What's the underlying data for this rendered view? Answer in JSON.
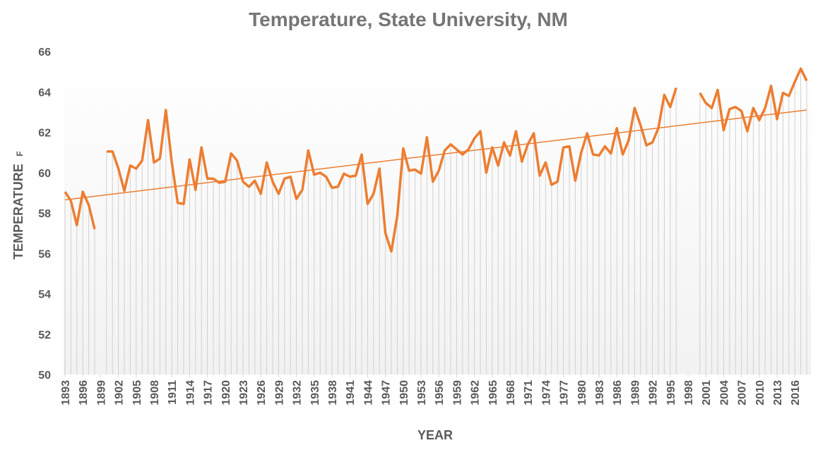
{
  "chart_data": {
    "type": "line",
    "title": "Temperature, State University, NM",
    "y_label": "TEMPERATURE",
    "y_unit": "F",
    "x_label": "YEAR",
    "x": [
      1893,
      1894,
      1895,
      1896,
      1897,
      1898,
      1899,
      1900,
      1901,
      1902,
      1903,
      1904,
      1905,
      1906,
      1907,
      1908,
      1909,
      1910,
      1911,
      1912,
      1913,
      1914,
      1915,
      1916,
      1917,
      1918,
      1919,
      1920,
      1921,
      1922,
      1923,
      1924,
      1925,
      1926,
      1927,
      1928,
      1929,
      1930,
      1931,
      1932,
      1933,
      1934,
      1935,
      1936,
      1937,
      1938,
      1939,
      1940,
      1941,
      1942,
      1943,
      1944,
      1945,
      1946,
      1947,
      1948,
      1949,
      1950,
      1951,
      1952,
      1953,
      1954,
      1955,
      1956,
      1957,
      1958,
      1959,
      1960,
      1961,
      1962,
      1963,
      1964,
      1965,
      1966,
      1967,
      1968,
      1969,
      1970,
      1971,
      1972,
      1973,
      1974,
      1975,
      1976,
      1977,
      1978,
      1979,
      1980,
      1981,
      1982,
      1983,
      1984,
      1985,
      1986,
      1987,
      1988,
      1989,
      1990,
      1991,
      1992,
      1993,
      1994,
      1995,
      1996,
      1997,
      1998,
      1999,
      2000,
      2001,
      2002,
      2003,
      2004,
      2005,
      2006,
      2007,
      2008,
      2009,
      2010,
      2011,
      2012,
      2013,
      2014,
      2015,
      2016,
      2017,
      2018
    ],
    "series": [
      {
        "color": "#ed7d31",
        "values": [
          59.05,
          58.6,
          57.4,
          59.05,
          58.4,
          57.2,
          null,
          61.05,
          61.05,
          60.2,
          59.1,
          60.35,
          60.2,
          60.6,
          62.6,
          60.5,
          60.7,
          63.1,
          60.5,
          58.5,
          58.45,
          60.65,
          59.15,
          61.25,
          59.7,
          59.7,
          59.5,
          59.55,
          60.95,
          60.6,
          59.55,
          59.3,
          59.6,
          58.95,
          60.5,
          59.55,
          58.95,
          59.7,
          59.8,
          58.7,
          59.15,
          61.1,
          59.9,
          60.0,
          59.8,
          59.25,
          59.3,
          59.95,
          59.8,
          59.85,
          60.9,
          58.45,
          58.95,
          60.2,
          57.0,
          56.1,
          57.85,
          61.2,
          60.1,
          60.15,
          59.95,
          61.75,
          59.55,
          60.1,
          61.1,
          61.4,
          61.15,
          60.9,
          61.15,
          61.7,
          62.05,
          60.0,
          61.25,
          60.35,
          61.5,
          60.85,
          62.05,
          60.55,
          61.4,
          61.95,
          59.85,
          60.5,
          59.4,
          59.55,
          61.25,
          61.3,
          59.6,
          61.0,
          61.95,
          60.9,
          60.85,
          61.3,
          60.95,
          62.2,
          60.9,
          61.6,
          63.2,
          62.35,
          61.35,
          61.5,
          62.2,
          63.85,
          63.25,
          64.2,
          null,
          null,
          null,
          63.95,
          63.45,
          63.2,
          64.1,
          62.1,
          63.15,
          63.25,
          63.05,
          62.05,
          63.2,
          62.6,
          63.2,
          64.3,
          62.65,
          63.95,
          63.8,
          64.5,
          65.15,
          64.55
        ]
      }
    ],
    "trendline": {
      "color": "#ed7d31",
      "x": [
        1893,
        2018
      ],
      "values": [
        58.65,
        63.1
      ]
    },
    "xlim": [
      1893,
      2018
    ],
    "xticks": [
      1893,
      1896,
      1899,
      1902,
      1905,
      1908,
      1911,
      1914,
      1917,
      1920,
      1923,
      1926,
      1929,
      1932,
      1935,
      1938,
      1941,
      1944,
      1947,
      1950,
      1953,
      1956,
      1959,
      1962,
      1965,
      1968,
      1971,
      1974,
      1977,
      1980,
      1983,
      1986,
      1989,
      1992,
      1995,
      1998,
      2001,
      2004,
      2007,
      2010,
      2013,
      2016
    ],
    "ylim": [
      50,
      66
    ],
    "yticks": [
      50,
      52,
      54,
      56,
      58,
      60,
      62,
      64,
      66
    ],
    "drop_lines": true
  }
}
